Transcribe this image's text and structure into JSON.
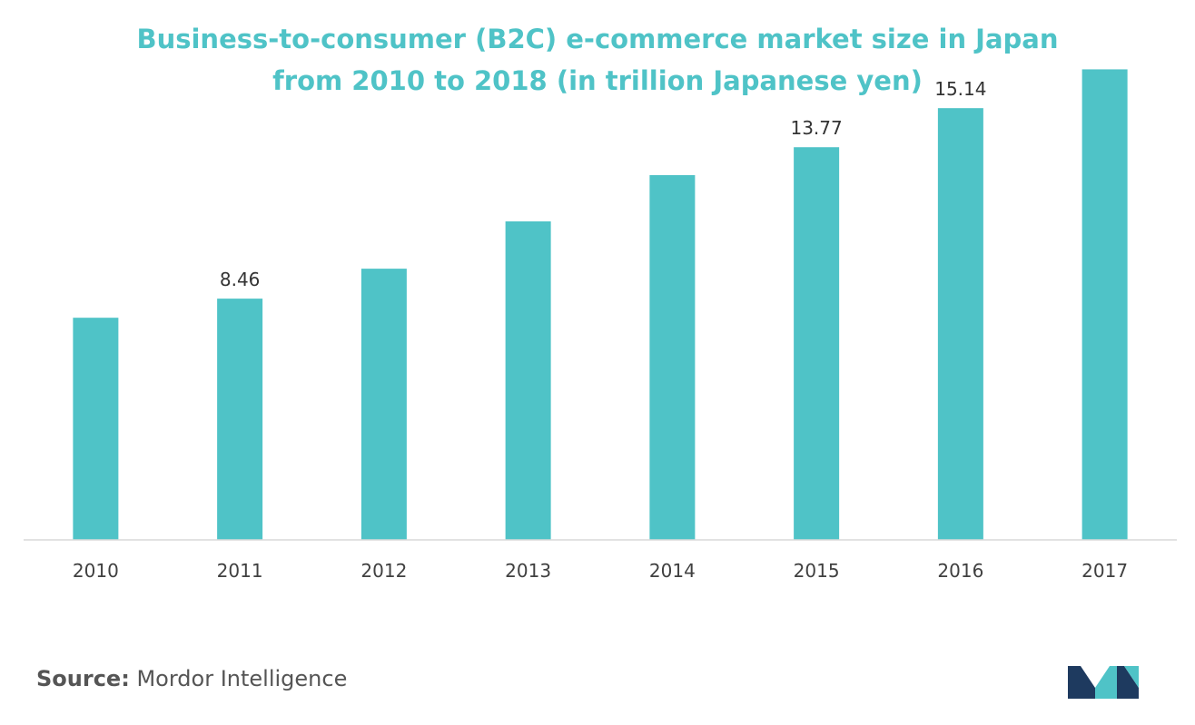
{
  "chart_data": {
    "type": "bar",
    "title": "Business-to-consumer (B2C) e-commerce market size in Japan from 2010 to 2018 (in trillion Japanese yen)",
    "title_lines": [
      "Business-to-consumer (B2C) e-commerce market size in Japan",
      "from 2010 to 2018 (in trillion Japanese yen)"
    ],
    "categories": [
      "2010",
      "2011",
      "2012",
      "2013",
      "2014",
      "2015",
      "2016",
      "2017"
    ],
    "values": [
      7.79,
      8.46,
      9.51,
      11.17,
      12.79,
      13.77,
      15.14,
      16.5
    ],
    "data_labels": [
      "",
      "8.46",
      "",
      "",
      "",
      "13.77",
      "15.14",
      ""
    ],
    "xlabel": "",
    "ylabel": "",
    "ylim": [
      0,
      16.8
    ],
    "grid": false,
    "bar_color": "#4fc3c7"
  },
  "source": {
    "label": "Source:",
    "text": "Mordor Intelligence"
  },
  "colors": {
    "title": "#4fc3c7",
    "bar": "#4fc3c7",
    "axis": "#d9d9d9",
    "tick_text": "#404040",
    "logo_dark": "#1e3a5f",
    "logo_light": "#4fc3c7"
  }
}
